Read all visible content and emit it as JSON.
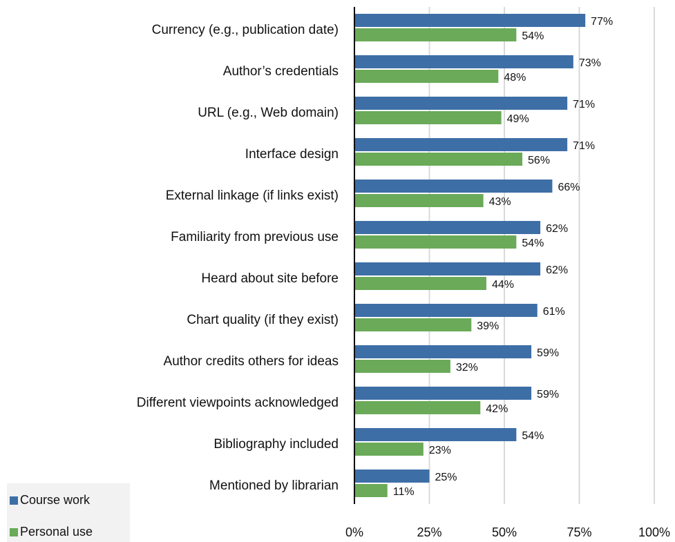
{
  "chart_data": {
    "type": "bar",
    "orientation": "horizontal",
    "categories": [
      "Currency (e.g., publication date)",
      "Author’s credentials",
      "URL (e.g., Web domain)",
      "Interface design",
      "External linkage (if links exist)",
      "Familiarity from previous use",
      "Heard about site before",
      "Chart quality (if they exist)",
      "Author credits others for ideas",
      "Different viewpoints acknowledged",
      "Bibliography included",
      "Mentioned by librarian"
    ],
    "series": [
      {
        "name": "Course work",
        "color": "#3e6ea6",
        "values": [
          77,
          73,
          71,
          71,
          66,
          62,
          62,
          61,
          59,
          59,
          54,
          25
        ],
        "value_labels": [
          "77%",
          "73%",
          "71%",
          "71%",
          "66%",
          "62%",
          "62%",
          "61%",
          "59%",
          "59%",
          "54%",
          "25%"
        ]
      },
      {
        "name": "Personal use",
        "color": "#6aaa58",
        "values": [
          54,
          48,
          49,
          56,
          43,
          54,
          44,
          39,
          32,
          42,
          23,
          11
        ],
        "value_labels": [
          "54%",
          "48%",
          "49%",
          "56%",
          "43%",
          "54%",
          "44%",
          "39%",
          "32%",
          "42%",
          "23%",
          "11%"
        ]
      }
    ],
    "xlim": [
      0,
      100
    ],
    "xticks": [
      {
        "value": 0,
        "label": "0%"
      },
      {
        "value": 25,
        "label": "25%"
      },
      {
        "value": 50,
        "label": "50%"
      },
      {
        "value": 75,
        "label": "75%"
      },
      {
        "value": 100,
        "label": "100%"
      }
    ],
    "grid": true,
    "legend": "bottom-left"
  }
}
